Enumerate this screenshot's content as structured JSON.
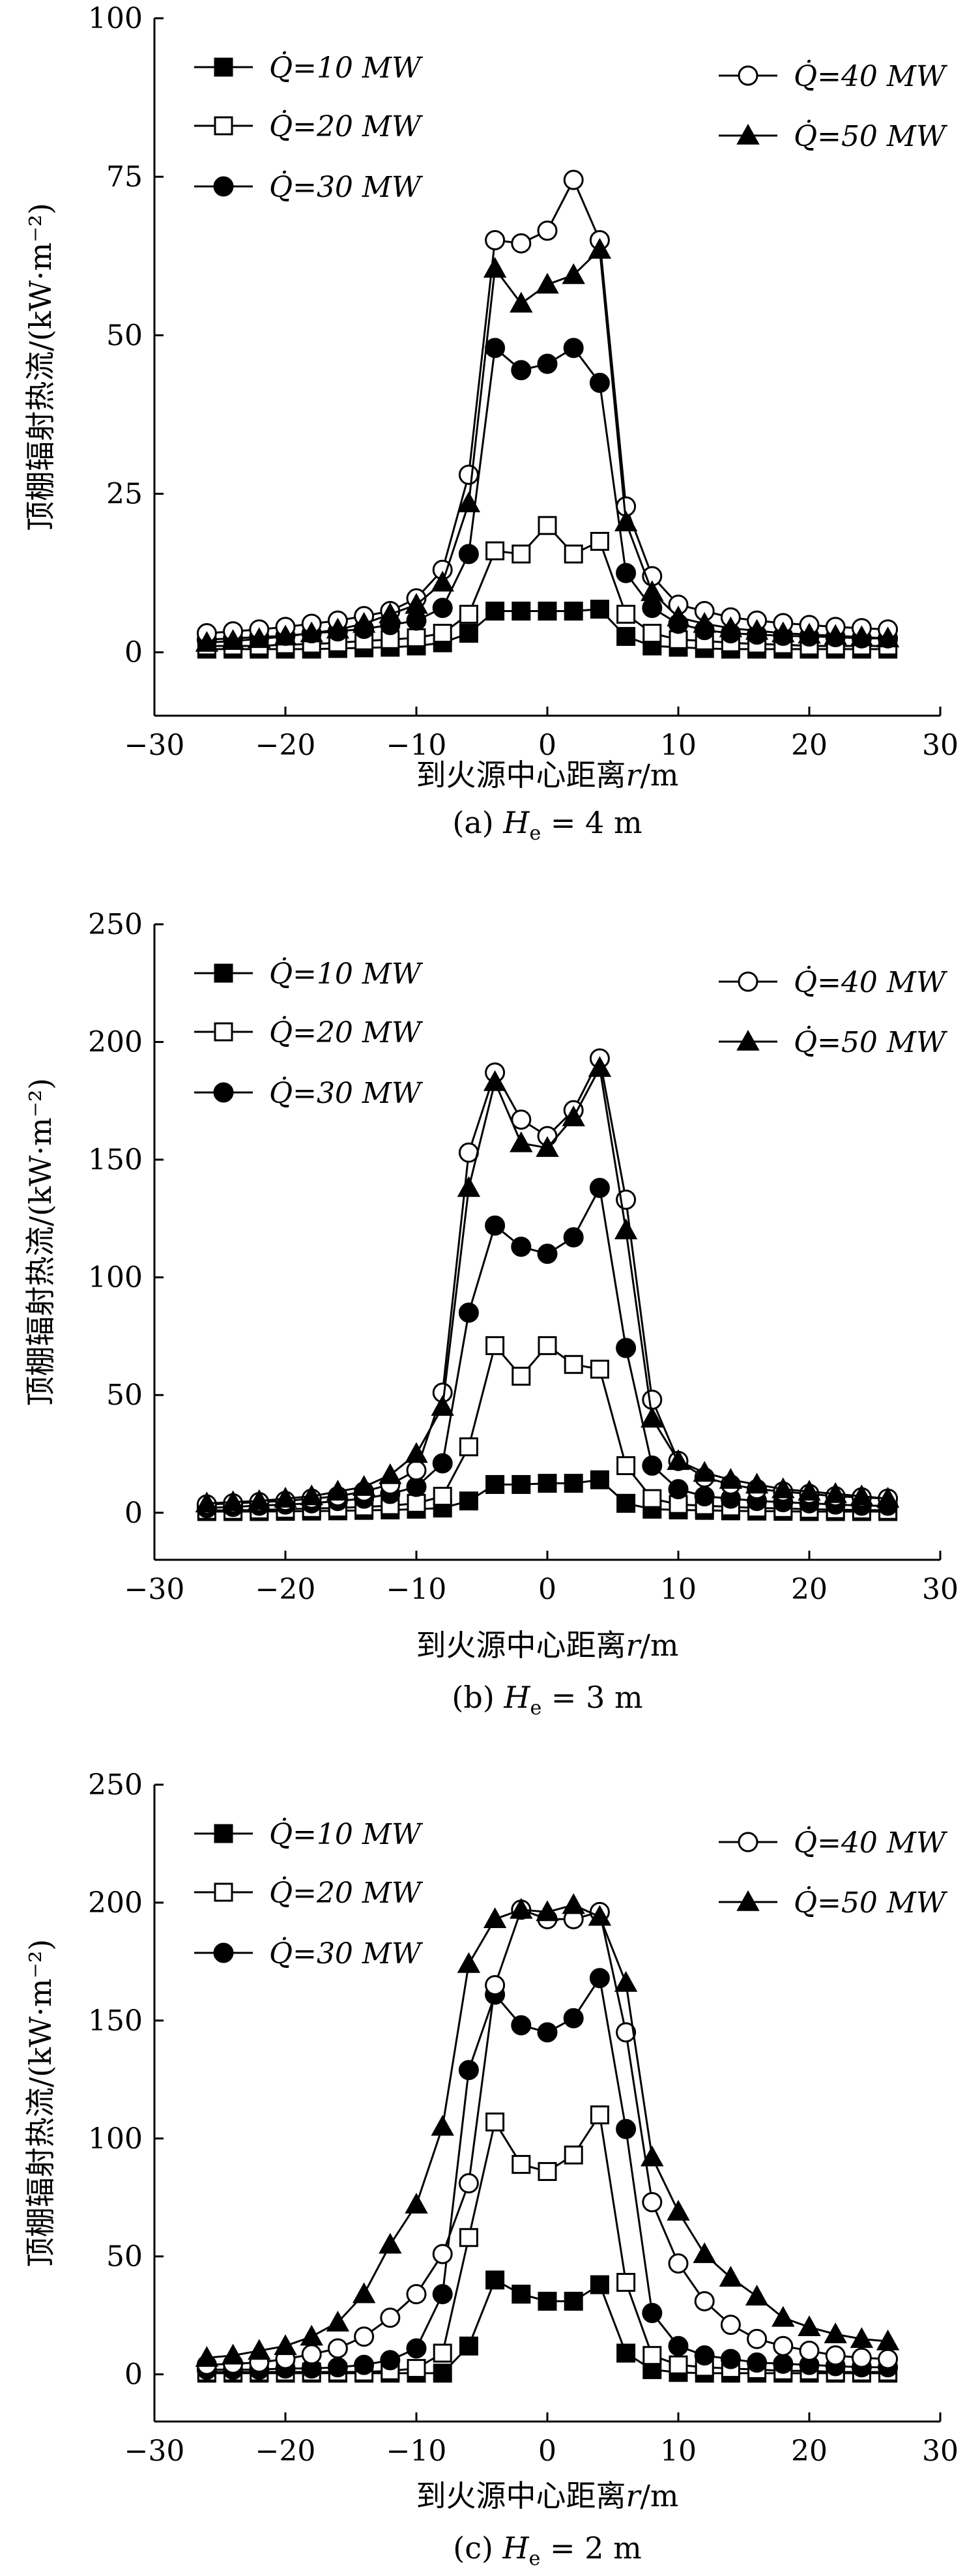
{
  "chart_data": [
    {
      "type": "line",
      "panel_caption": "(a) H_e = 4 m",
      "caption_prefix": "(a) ",
      "caption_var": "H",
      "caption_sub": "e",
      "caption_suffix": " = 4 m",
      "xlabel_main": "到火源中心距离",
      "xlabel_var": "r",
      "xlabel_unit": "/m",
      "ylabel": "顶棚辐射热流/(kW·m⁻²)",
      "xlim": [
        -30,
        30
      ],
      "ylim": [
        -10,
        100
      ],
      "xticks": [
        -30,
        -20,
        -10,
        0,
        10,
        20,
        30
      ],
      "yticks": [
        0,
        25,
        50,
        75,
        100
      ],
      "x": [
        -26,
        -24,
        -22,
        -20,
        -18,
        -16,
        -14,
        -12,
        -10,
        -8,
        -6,
        -4,
        -2,
        0,
        2,
        4,
        6,
        8,
        10,
        12,
        14,
        16,
        18,
        20,
        22,
        24,
        26
      ],
      "legend_placement": "top-left and top-right",
      "series": [
        {
          "name": "Q̇=10 MW",
          "marker": "square-filled",
          "values": [
            0.5,
            0.5,
            0.5,
            0.5,
            0.5,
            0.6,
            0.7,
            0.8,
            1.0,
            1.5,
            3.0,
            6.5,
            6.5,
            6.5,
            6.5,
            6.8,
            2.5,
            1.0,
            0.8,
            0.6,
            0.5,
            0.5,
            0.5,
            0.5,
            0.5,
            0.5,
            0.5
          ]
        },
        {
          "name": "Q̇=20 MW",
          "marker": "square-open",
          "values": [
            1.0,
            1.0,
            1.0,
            1.2,
            1.3,
            1.5,
            1.8,
            2.0,
            2.3,
            3.0,
            6.0,
            16.0,
            15.5,
            20.0,
            15.5,
            17.5,
            6.0,
            3.0,
            2.0,
            1.8,
            1.5,
            1.3,
            1.2,
            1.0,
            1.0,
            1.0,
            1.0
          ]
        },
        {
          "name": "Q̇=30 MW",
          "marker": "circle-filled",
          "values": [
            2.0,
            2.2,
            2.4,
            2.6,
            3.0,
            3.3,
            3.7,
            4.3,
            5.0,
            7.0,
            15.5,
            48.0,
            44.5,
            45.5,
            48.0,
            42.5,
            12.5,
            7.0,
            4.5,
            3.5,
            3.0,
            2.8,
            2.6,
            2.5,
            2.4,
            2.2,
            2.2
          ]
        },
        {
          "name": "Q̇=40 MW",
          "marker": "circle-open",
          "values": [
            3.0,
            3.3,
            3.6,
            4.0,
            4.5,
            5.0,
            5.7,
            6.5,
            8.5,
            13.0,
            28.0,
            65.0,
            64.5,
            66.5,
            74.5,
            65.0,
            23.0,
            12.0,
            7.5,
            6.5,
            5.5,
            5.0,
            4.6,
            4.3,
            4.0,
            3.8,
            3.6
          ]
        },
        {
          "name": "Q̇=50 MW",
          "marker": "triangle-filled",
          "values": [
            1.5,
            1.8,
            2.1,
            2.5,
            3.0,
            3.6,
            4.5,
            6.0,
            7.5,
            11.0,
            23.5,
            60.5,
            55.0,
            58.0,
            59.5,
            63.5,
            20.5,
            9.5,
            5.5,
            4.5,
            3.8,
            3.4,
            3.0,
            2.8,
            2.6,
            2.4,
            2.2
          ]
        }
      ]
    },
    {
      "type": "line",
      "panel_caption": "(b) H_e = 3 m",
      "caption_prefix": "(b) ",
      "caption_var": "H",
      "caption_sub": "e",
      "caption_suffix": " = 3 m",
      "xlabel_main": "到火源中心距离",
      "xlabel_var": "r",
      "xlabel_unit": "/m",
      "ylabel": "顶棚辐射热流/(kW·m⁻²)",
      "xlim": [
        -30,
        30
      ],
      "ylim": [
        -20,
        250
      ],
      "xticks": [
        -30,
        -20,
        -10,
        0,
        10,
        20,
        30
      ],
      "yticks": [
        0,
        50,
        100,
        150,
        200,
        250
      ],
      "x": [
        -26,
        -24,
        -22,
        -20,
        -18,
        -16,
        -14,
        -12,
        -10,
        -8,
        -6,
        -4,
        -2,
        0,
        2,
        4,
        6,
        8,
        10,
        12,
        14,
        16,
        18,
        20,
        22,
        24,
        26
      ],
      "legend_placement": "top-left and top-right",
      "series": [
        {
          "name": "Q̇=10 MW",
          "marker": "square-filled",
          "values": [
            0.5,
            0.5,
            0.5,
            0.6,
            0.7,
            0.8,
            1.0,
            1.2,
            1.5,
            2.0,
            5.0,
            12.0,
            12.0,
            12.5,
            12.5,
            14.0,
            4.0,
            1.5,
            1.2,
            1.0,
            0.8,
            0.7,
            0.6,
            0.5,
            0.5,
            0.5,
            0.5
          ]
        },
        {
          "name": "Q̇=20 MW",
          "marker": "square-open",
          "values": [
            1.0,
            1.0,
            1.2,
            1.5,
            1.8,
            2.0,
            2.5,
            3.0,
            4.0,
            7.0,
            28.0,
            71.0,
            58.0,
            71.0,
            63.0,
            61.0,
            20.0,
            6.0,
            3.5,
            3.0,
            2.5,
            2.0,
            1.8,
            1.5,
            1.3,
            1.2,
            1.0
          ]
        },
        {
          "name": "Q̇=30 MW",
          "marker": "circle-filled",
          "values": [
            2.0,
            2.5,
            3.0,
            3.5,
            4.0,
            5.0,
            6.0,
            8.0,
            11.0,
            21.0,
            85.0,
            122.0,
            113.0,
            110.0,
            117.0,
            138.0,
            70.0,
            20.0,
            10.0,
            7.0,
            6.0,
            5.0,
            4.5,
            4.0,
            3.5,
            3.0,
            3.0
          ]
        },
        {
          "name": "Q̇=40 MW",
          "marker": "circle-open",
          "values": [
            3.5,
            4.0,
            4.5,
            5.0,
            6.0,
            7.0,
            9.0,
            12.0,
            18.0,
            51.0,
            153.0,
            187.0,
            167.0,
            160.0,
            171.0,
            193.0,
            133.0,
            48.0,
            22.0,
            15.0,
            12.0,
            10.0,
            9.0,
            8.0,
            7.0,
            6.5,
            6.0
          ]
        },
        {
          "name": "Q̇=50 MW",
          "marker": "triangle-filled",
          "values": [
            4.0,
            4.5,
            5.0,
            6.0,
            7.0,
            9.0,
            11.0,
            16.0,
            25.0,
            45.0,
            138.0,
            183.0,
            157.0,
            155.0,
            168.0,
            189.0,
            120.0,
            40.0,
            22.0,
            17.0,
            14.0,
            12.0,
            10.0,
            9.0,
            8.0,
            7.0,
            6.0
          ]
        }
      ]
    },
    {
      "type": "line",
      "panel_caption": "(c) H_e = 2 m",
      "caption_prefix": "(c) ",
      "caption_var": "H",
      "caption_sub": "e",
      "caption_suffix": " = 2 m",
      "xlabel_main": "到火源中心距离",
      "xlabel_var": "r",
      "xlabel_unit": "/m",
      "ylabel": "顶棚辐射热流/(kW·m⁻²)",
      "xlim": [
        -30,
        30
      ],
      "ylim": [
        -20,
        250
      ],
      "xticks": [
        -30,
        -20,
        -10,
        0,
        10,
        20,
        30
      ],
      "yticks": [
        0,
        50,
        100,
        150,
        200,
        250
      ],
      "x": [
        -26,
        -24,
        -22,
        -20,
        -18,
        -16,
        -14,
        -12,
        -10,
        -8,
        -6,
        -4,
        -2,
        0,
        2,
        4,
        6,
        8,
        10,
        12,
        14,
        16,
        18,
        20,
        22,
        24,
        26
      ],
      "legend_placement": "top-left and top-right",
      "series": [
        {
          "name": "Q̇=10 MW",
          "marker": "square-filled",
          "values": [
            0.5,
            0.5,
            0.5,
            0.5,
            0.5,
            0.5,
            0.5,
            0.5,
            0.5,
            0.5,
            12.0,
            40.0,
            34.0,
            31.0,
            31.0,
            38.0,
            9.0,
            2.0,
            0.8,
            0.5,
            0.5,
            0.5,
            0.5,
            0.5,
            0.5,
            0.5,
            0.5
          ]
        },
        {
          "name": "Q̇=20 MW",
          "marker": "square-open",
          "values": [
            1.0,
            1.0,
            1.0,
            1.0,
            1.0,
            1.0,
            1.0,
            1.5,
            2.5,
            9.0,
            58.0,
            107.0,
            89.0,
            86.0,
            93.0,
            110.0,
            39.0,
            8.0,
            4.0,
            3.0,
            2.5,
            2.0,
            1.5,
            1.5,
            1.0,
            1.0,
            1.0
          ]
        },
        {
          "name": "Q̇=30 MW",
          "marker": "circle-filled",
          "values": [
            2.0,
            2.0,
            2.0,
            2.5,
            2.5,
            3.0,
            4.0,
            6.0,
            11.0,
            34.0,
            129.0,
            161.0,
            148.0,
            145.0,
            151.0,
            168.0,
            104.0,
            26.0,
            12.0,
            8.0,
            6.5,
            5.0,
            4.5,
            4.0,
            3.5,
            3.0,
            3.0
          ]
        },
        {
          "name": "Q̇=40 MW",
          "marker": "circle-open",
          "values": [
            4.0,
            4.5,
            5.0,
            6.5,
            8.5,
            11.0,
            16.0,
            24.0,
            34.0,
            51.0,
            81.0,
            165.0,
            197.0,
            193.0,
            193.0,
            196.0,
            145.0,
            73.0,
            47.0,
            31.0,
            21.0,
            15.0,
            12.0,
            10.0,
            8.0,
            7.0,
            6.5
          ]
        },
        {
          "name": "Q̇=50 MW",
          "marker": "triangle-filled",
          "values": [
            7.0,
            8.0,
            10.0,
            12.0,
            16.0,
            22.0,
            34.0,
            55.0,
            72.0,
            105.0,
            174.0,
            193.0,
            197.0,
            196.0,
            199.0,
            194.0,
            166.0,
            92.0,
            69.0,
            51.0,
            41.0,
            33.0,
            24.0,
            20.0,
            17.0,
            15.0,
            14.0
          ]
        }
      ]
    }
  ]
}
